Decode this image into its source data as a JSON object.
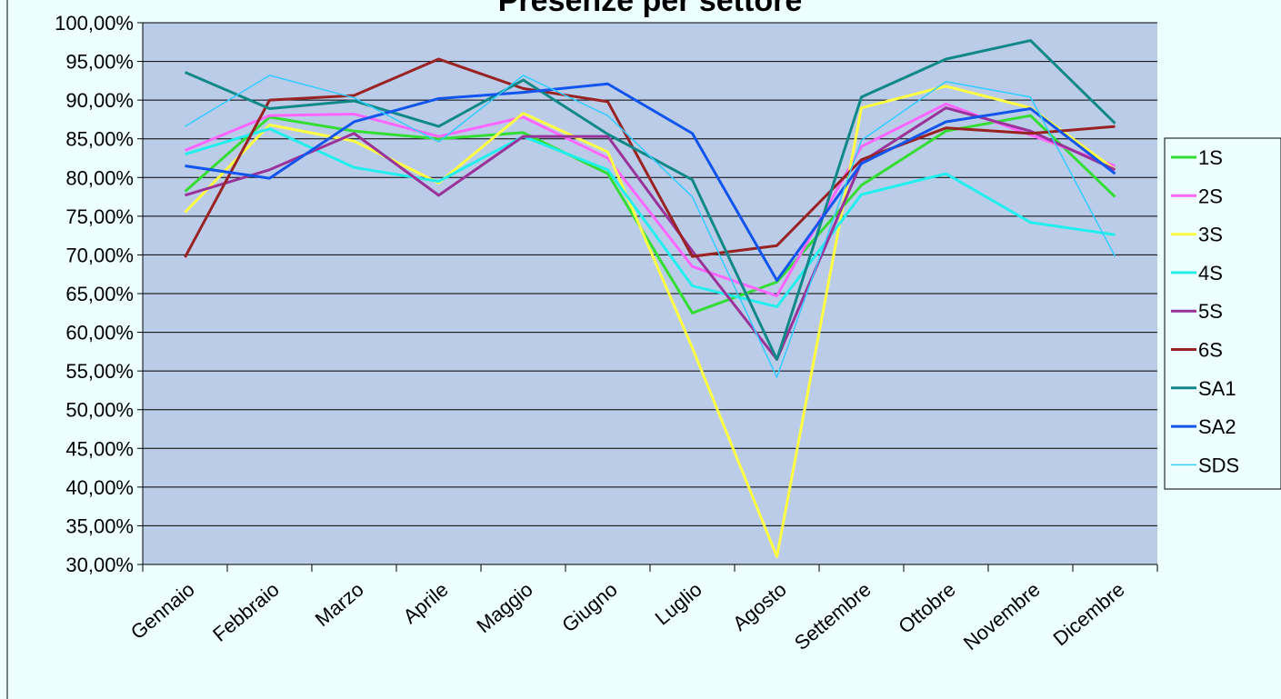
{
  "chart_data": {
    "type": "line",
    "title": "Presenze per settore",
    "categories": [
      "Gennaio",
      "Febbraio",
      "Marzo",
      "Aprile",
      "Maggio",
      "Giugno",
      "Luglio",
      "Agosto",
      "Settembre",
      "Ottobre",
      "Novembre",
      "Dicembre"
    ],
    "ylim": [
      30,
      100
    ],
    "yticks": [
      {
        "value": 30,
        "label": "30,00%"
      },
      {
        "value": 35,
        "label": "35,00%"
      },
      {
        "value": 40,
        "label": "40,00%"
      },
      {
        "value": 45,
        "label": "45,00%"
      },
      {
        "value": 50,
        "label": "50,00%"
      },
      {
        "value": 55,
        "label": "55,00%"
      },
      {
        "value": 60,
        "label": "60,00%"
      },
      {
        "value": 65,
        "label": "65,00%"
      },
      {
        "value": 70,
        "label": "70,00%"
      },
      {
        "value": 75,
        "label": "75,00%"
      },
      {
        "value": 80,
        "label": "80,00%"
      },
      {
        "value": 85,
        "label": "85,00%"
      },
      {
        "value": 90,
        "label": "90,00%"
      },
      {
        "value": 95,
        "label": "95,00%"
      },
      {
        "value": 100,
        "label": "100,00%"
      }
    ],
    "grid": true,
    "legend": "right",
    "series": [
      {
        "name": "1S",
        "color": "#33dd33",
        "width": 3,
        "values": [
          78.2,
          87.8,
          86,
          85,
          85.8,
          80.5,
          62.5,
          66.5,
          79,
          86,
          88,
          77.5
        ]
      },
      {
        "name": "2S",
        "color": "#ff66ff",
        "width": 3,
        "values": [
          83.5,
          88,
          88.2,
          85.3,
          87.8,
          82.5,
          68.5,
          64.7,
          84,
          89.5,
          85.5,
          81.5
        ]
      },
      {
        "name": "3S",
        "color": "#ffff44",
        "width": 3,
        "values": [
          75.5,
          86.8,
          84.7,
          79.3,
          88.3,
          83.3,
          58,
          31,
          89,
          91.8,
          89,
          81
        ]
      },
      {
        "name": "4S",
        "color": "#22eeee",
        "width": 3,
        "values": [
          83,
          86.3,
          81.3,
          79.5,
          85.3,
          81,
          66,
          63.3,
          77.8,
          80.5,
          74.2,
          72.6
        ]
      },
      {
        "name": "5S",
        "color": "#993399",
        "width": 3,
        "values": [
          77.7,
          81,
          85.7,
          77.7,
          85.3,
          85.3,
          70.5,
          56.5,
          82,
          89,
          86,
          81
        ]
      },
      {
        "name": "6S",
        "color": "#992222",
        "width": 3,
        "values": [
          69.7,
          90,
          90.6,
          95.3,
          91.5,
          89.8,
          69.8,
          71.2,
          82.3,
          86.4,
          85.7,
          86.6
        ]
      },
      {
        "name": "SA1",
        "color": "#118888",
        "width": 3,
        "values": [
          93.6,
          88.9,
          89.9,
          86.6,
          92.6,
          85.6,
          79.7,
          56.5,
          90.4,
          95.3,
          97.7,
          87
        ]
      },
      {
        "name": "SA2",
        "color": "#1155ee",
        "width": 3,
        "values": [
          81.5,
          79.9,
          87.2,
          90.2,
          91,
          92.1,
          85.7,
          66.7,
          81.8,
          87.2,
          88.9,
          80.5
        ]
      },
      {
        "name": "SDS",
        "color": "#33ccff",
        "width": 1.5,
        "values": [
          86.6,
          93.2,
          90.3,
          84.6,
          93.2,
          88,
          77.5,
          54.2,
          84.8,
          92.4,
          90.4,
          69.8
        ]
      }
    ]
  }
}
